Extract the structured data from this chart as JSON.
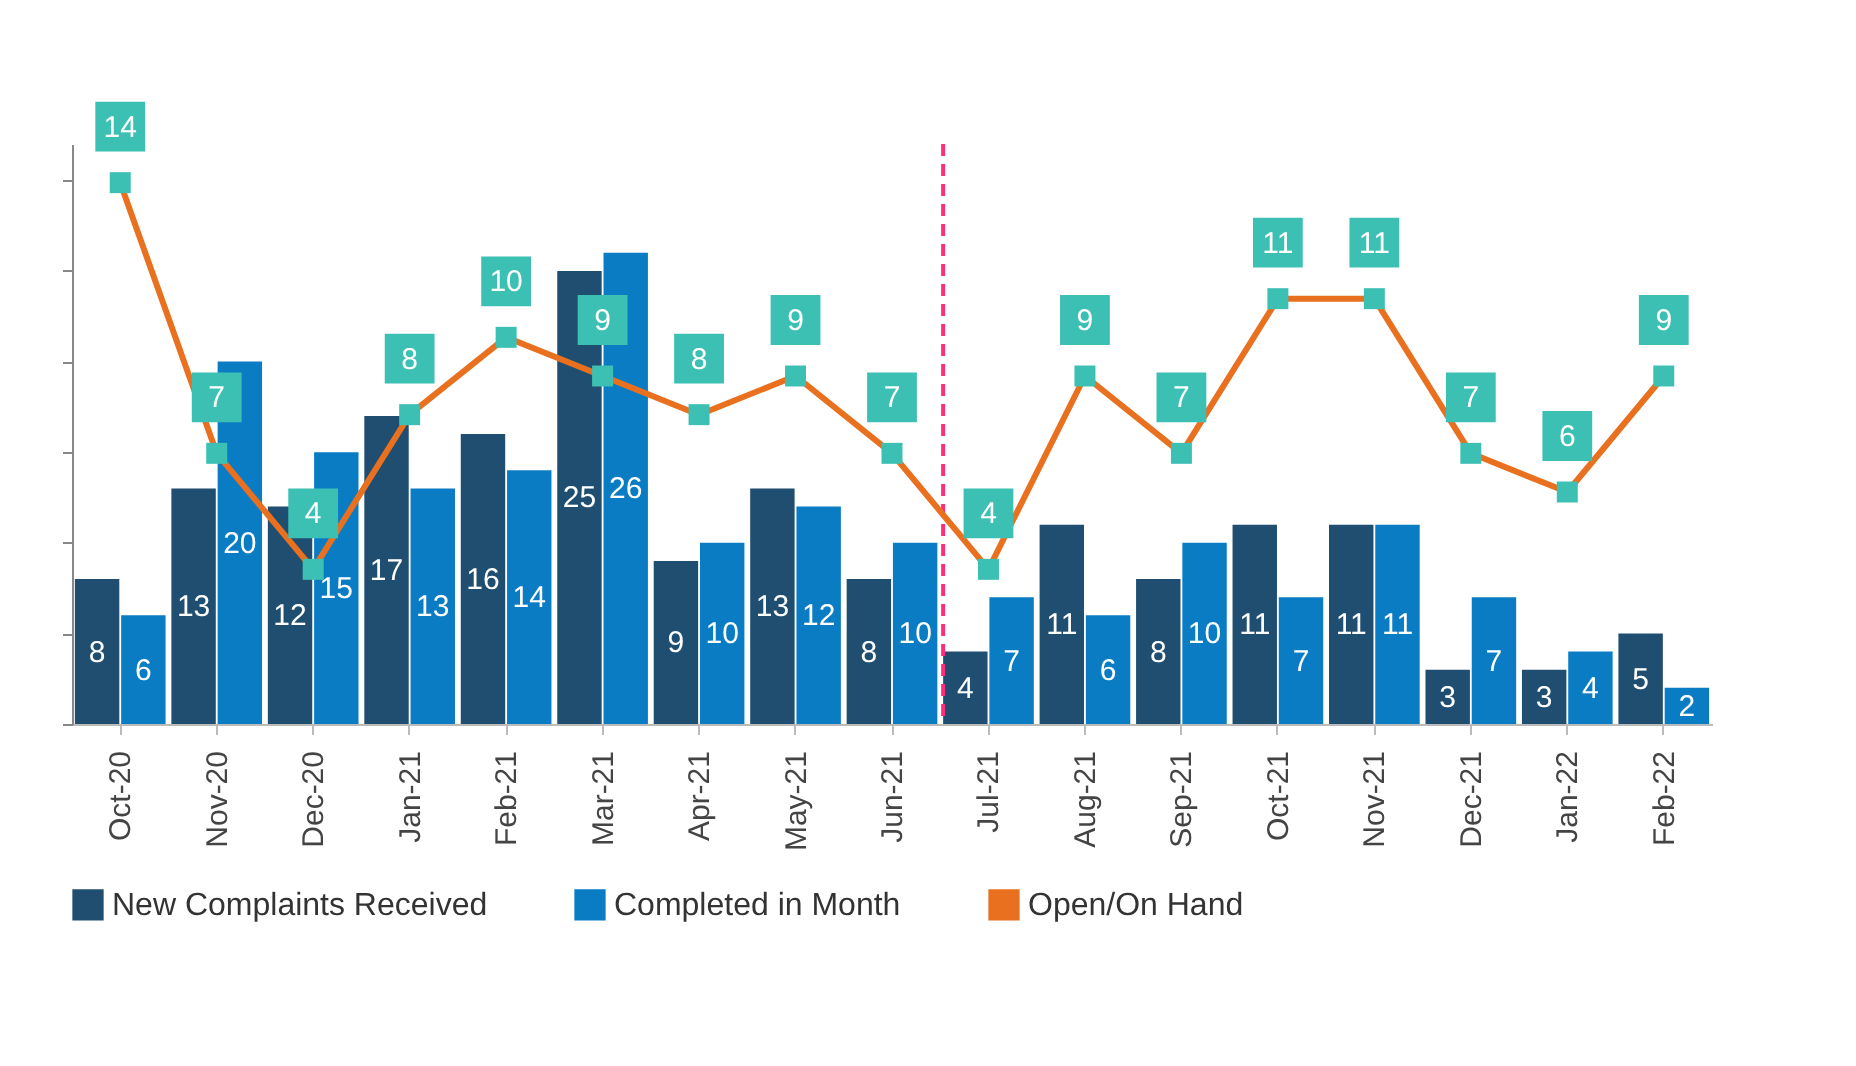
{
  "chart_data": {
    "type": "bar",
    "categories": [
      "Oct-20",
      "Nov-20",
      "Dec-20",
      "Jan-21",
      "Feb-21",
      "Mar-21",
      "Apr-21",
      "May-21",
      "Jun-21",
      "Jul-21",
      "Aug-21",
      "Sep-21",
      "Oct-21",
      "Nov-21",
      "Dec-21",
      "Jan-22",
      "Feb-22"
    ],
    "series": [
      {
        "name": "New Complaints Received",
        "color": "#1f4e70",
        "values": [
          8,
          13,
          12,
          17,
          16,
          25,
          9,
          13,
          8,
          4,
          11,
          8,
          11,
          11,
          3,
          3,
          5
        ]
      },
      {
        "name": "Completed in Month",
        "color": "#0a7cc4",
        "values": [
          6,
          20,
          15,
          13,
          14,
          26,
          10,
          12,
          10,
          7,
          6,
          10,
          7,
          11,
          7,
          4,
          2
        ]
      },
      {
        "name": "Open/On Hand",
        "type": "line",
        "axis": "y2",
        "color": "#e8701e",
        "values": [
          14,
          7,
          4,
          8,
          10,
          9,
          8,
          9,
          7,
          4,
          9,
          7,
          11,
          11,
          7,
          6,
          9
        ]
      }
    ],
    "ylim": [
      0,
      32
    ],
    "y2lim": [
      0,
      15
    ],
    "tick_labels": "x",
    "data_labels": true,
    "marker": "square",
    "legend": "bottom",
    "grid": false,
    "ref_lines": [
      {
        "axis": "x",
        "value": "Jul-21",
        "color": "#ff2d7a",
        "line_style": "dashed"
      }
    ]
  }
}
